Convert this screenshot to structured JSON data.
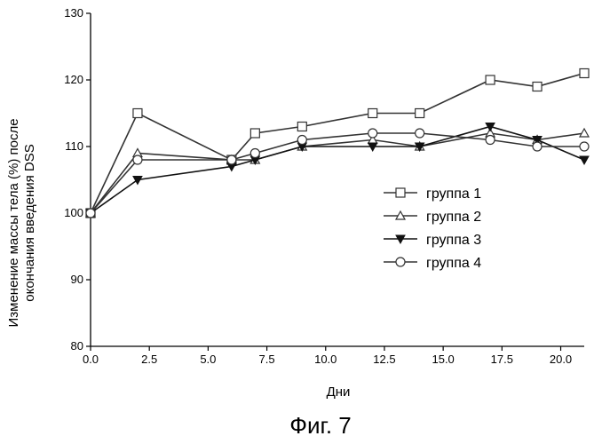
{
  "chart_data": {
    "type": "line",
    "xlabel": "Дни",
    "ylabel_lines": [
      "Изменение массы тела (%) после",
      "окончания введения DSS"
    ],
    "xlim": [
      0,
      21
    ],
    "ylim": [
      80,
      130
    ],
    "x_ticks": [
      0.0,
      2.5,
      5.0,
      7.5,
      10.0,
      12.5,
      15.0,
      17.5,
      20.0
    ],
    "x_tick_labels": [
      "0.0",
      "2.5",
      "5.0",
      "7.5",
      "10.0",
      "12.5",
      "15.0",
      "17.5",
      "20.0"
    ],
    "y_ticks": [
      80,
      90,
      100,
      110,
      120,
      130
    ],
    "y_tick_labels": [
      "80",
      "90",
      "100",
      "110",
      "120",
      "130"
    ],
    "legend_position": "right",
    "series": [
      {
        "name": "группа 1",
        "marker": "square",
        "color": "#333333",
        "x": [
          0,
          2,
          6,
          7,
          9,
          12,
          14,
          17,
          19,
          21
        ],
        "y": [
          100,
          115,
          108,
          112,
          113,
          115,
          115,
          120,
          119,
          121
        ]
      },
      {
        "name": "группа 2",
        "marker": "triangle-up",
        "color": "#333333",
        "x": [
          0,
          2,
          6,
          7,
          9,
          12,
          14,
          17,
          19,
          21
        ],
        "y": [
          100,
          109,
          108,
          108,
          110,
          111,
          110,
          112,
          111,
          112
        ]
      },
      {
        "name": "группа 3",
        "marker": "triangle-down",
        "color": "#111111",
        "x": [
          0,
          2,
          6,
          7,
          9,
          12,
          14,
          17,
          19,
          21
        ],
        "y": [
          100,
          105,
          107,
          108,
          110,
          110,
          110,
          113,
          111,
          108
        ]
      },
      {
        "name": "группа 4",
        "marker": "circle",
        "color": "#333333",
        "x": [
          0,
          2,
          6,
          7,
          9,
          12,
          14,
          17,
          19,
          21
        ],
        "y": [
          100,
          108,
          108,
          109,
          111,
          112,
          112,
          111,
          110,
          110
        ]
      }
    ]
  },
  "caption": "Фиг. 7"
}
